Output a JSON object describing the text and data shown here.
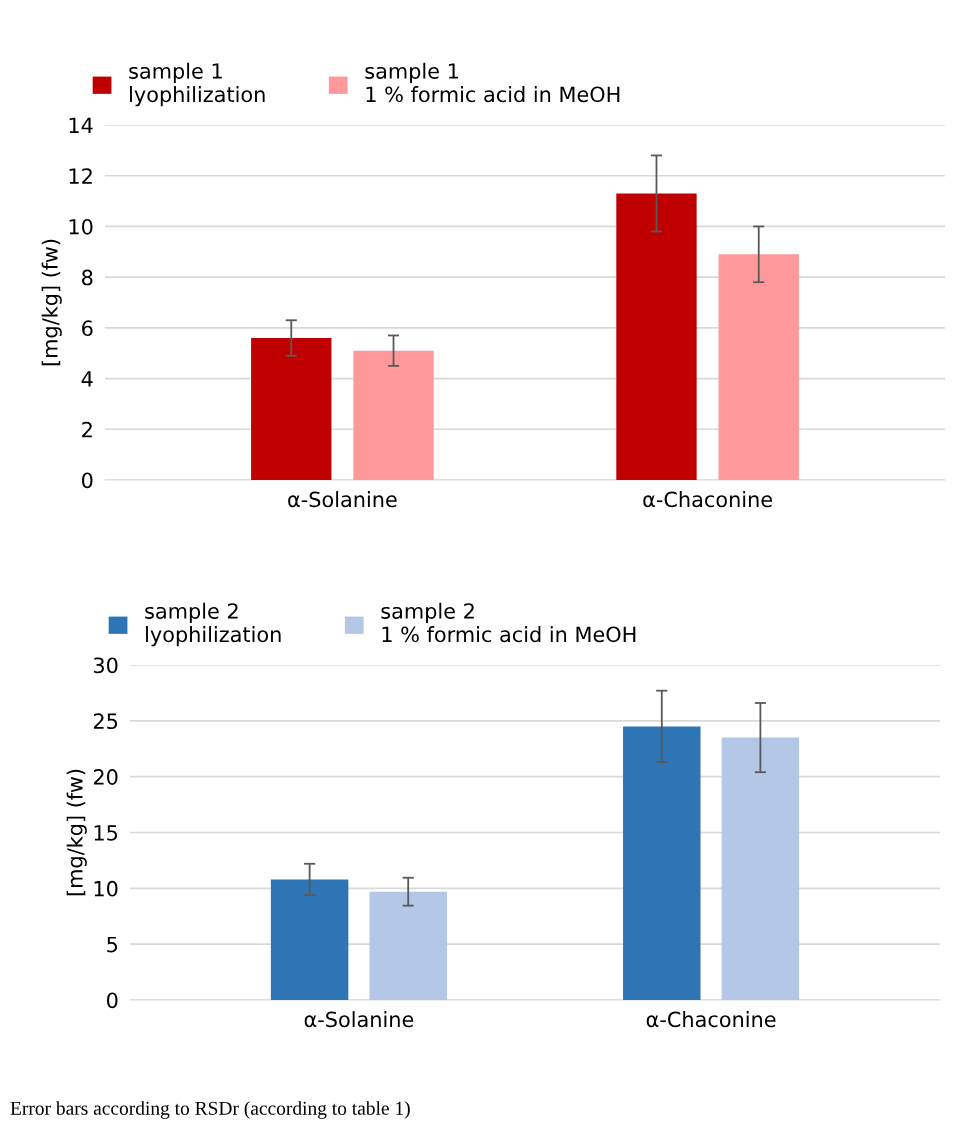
{
  "chart_data": [
    {
      "type": "bar",
      "categories": [
        "α-Solanine",
        "α-Chaconine"
      ],
      "ylabel": "[mg/kg] (fw)",
      "ylim": [
        0,
        14
      ],
      "yticks": [
        0,
        2,
        4,
        6,
        8,
        10,
        12,
        14
      ],
      "grid": "y",
      "legend": "top",
      "series": [
        {
          "name": "sample 1\nlyophilization",
          "color": "#c00000",
          "values": [
            5.6,
            11.3
          ],
          "errors": [
            0.7,
            1.5
          ]
        },
        {
          "name": "sample 1\n1 % formic acid in MeOH",
          "color": "#ff9999",
          "values": [
            5.1,
            8.9
          ],
          "errors": [
            0.6,
            1.1
          ]
        }
      ]
    },
    {
      "type": "bar",
      "categories": [
        "α-Solanine",
        "α-Chaconine"
      ],
      "ylabel": "[mg/kg] (fw)",
      "ylim": [
        0,
        30
      ],
      "yticks": [
        0,
        5,
        10,
        15,
        20,
        25,
        30
      ],
      "grid": "y",
      "legend": "top",
      "series": [
        {
          "name": "sample 2\nlyophilization",
          "color": "#2e75b6",
          "values": [
            10.8,
            24.5
          ],
          "errors": [
            1.4,
            3.2
          ]
        },
        {
          "name": "sample 2\n1 % formic acid in MeOH",
          "color": "#b4c7e7",
          "values": [
            9.7,
            23.5
          ],
          "errors": [
            1.25,
            3.1
          ]
        }
      ],
      "annotations": [
        "Error bars according to RSDr (according to table 1)"
      ]
    }
  ]
}
